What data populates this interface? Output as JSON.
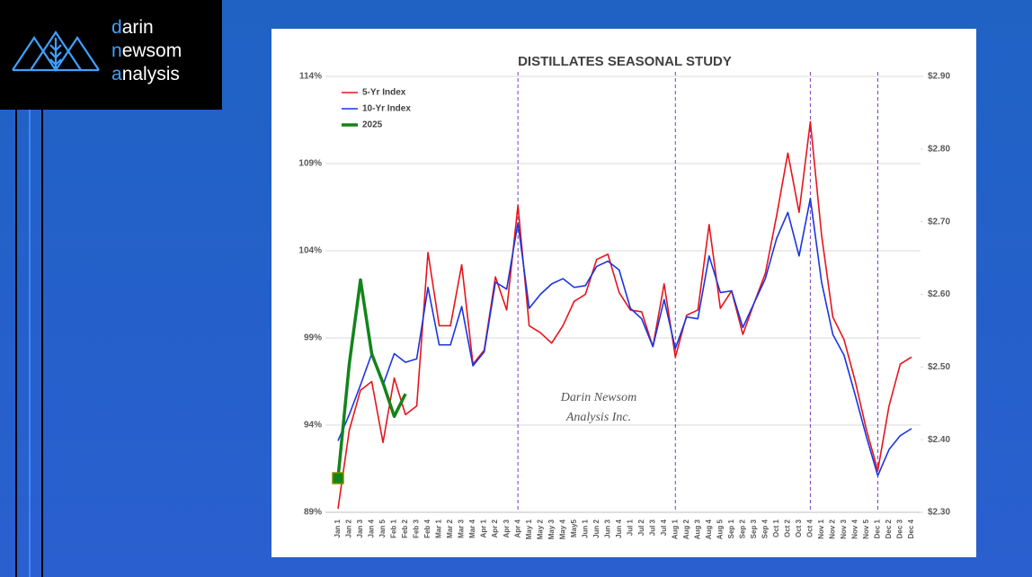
{
  "logo": {
    "lines": [
      {
        "initial": "d",
        "rest": "arin"
      },
      {
        "initial": "n",
        "rest": "ewsom"
      },
      {
        "initial": "a",
        "rest": "nalysis"
      }
    ]
  },
  "watermark": {
    "lines": [
      "Darin Newsom",
      "Analysis Inc."
    ]
  },
  "chart_data": {
    "type": "line",
    "title": "DISTILLATES SEASONAL STUDY",
    "categories": [
      "Jan 1",
      "Jan 2",
      "Jan 3",
      "Jan 4",
      "Jan 5",
      "Feb 1",
      "Feb 2",
      "Feb 3",
      "Feb 4",
      "Mar 1",
      "Mar 2",
      "Mar 3",
      "Mar 4",
      "Apr 1",
      "Apr 2",
      "Apr 3",
      "Apr 4",
      "May 1",
      "May 2",
      "May 3",
      "May 4",
      "May5",
      "Jun 1",
      "Jun 2",
      "Jun 3",
      "Jun 4",
      "Jul 1",
      "Jul 2",
      "Jul 3",
      "Jul 4",
      "Aug 1",
      "Aug 2",
      "Aug 3",
      "Aug 4",
      "Aug 5",
      "Sep 1",
      "Sep 2",
      "Sep 3",
      "Sep 4",
      "Oct 1",
      "Oct 2",
      "Oct 3",
      "Oct 4",
      "Nov 1",
      "Nov 2",
      "Nov 3",
      "Nov 4",
      "Nov 5",
      "Dec 1",
      "Dec 2",
      "Dec 3",
      "Dec 4"
    ],
    "series": [
      {
        "name": "5-Yr Index",
        "color": "#e8141b",
        "width": 1.6,
        "values": [
          89.2,
          93.7,
          96.0,
          96.5,
          93.0,
          96.7,
          94.6,
          95.1,
          103.9,
          99.7,
          99.7,
          103.2,
          97.5,
          98.3,
          102.5,
          100.6,
          106.6,
          99.7,
          99.3,
          98.7,
          99.7,
          101.1,
          101.5,
          103.5,
          103.8,
          101.6,
          100.6,
          100.5,
          98.5,
          102.1,
          97.9,
          100.3,
          100.6,
          105.5,
          100.7,
          101.7,
          99.2,
          101.0,
          102.7,
          106.0,
          109.6,
          106.2,
          111.4,
          104.9,
          100.2,
          98.9,
          96.5,
          93.7,
          91.4,
          95.1,
          97.5,
          97.9
        ]
      },
      {
        "name": "10-Yr Index",
        "color": "#1a35e0",
        "width": 1.6,
        "values": [
          93.1,
          94.6,
          96.3,
          98.1,
          96.3,
          98.1,
          97.6,
          97.8,
          101.9,
          98.6,
          98.6,
          100.8,
          97.4,
          98.2,
          102.2,
          101.8,
          105.6,
          100.7,
          101.5,
          102.1,
          102.4,
          101.9,
          102.0,
          103.1,
          103.4,
          102.9,
          100.7,
          100.1,
          98.5,
          101.2,
          98.4,
          100.2,
          100.1,
          103.7,
          101.6,
          101.7,
          99.6,
          101.0,
          102.4,
          104.7,
          106.2,
          103.7,
          107.0,
          102.2,
          99.2,
          98.0,
          95.7,
          93.3,
          91.1,
          92.6,
          93.4,
          93.8
        ]
      },
      {
        "name": "2025",
        "color": "#12841a",
        "width": 3.5,
        "axis": "y2",
        "marker": "square",
        "marker_color": "#8a8a00",
        "values": [
          2.347,
          2.504,
          2.62,
          2.518,
          2.478,
          2.432,
          2.463,
          null,
          null,
          null,
          null,
          null,
          null,
          null,
          null,
          null,
          null,
          null,
          null,
          null,
          null,
          null,
          null,
          null,
          null,
          null,
          null,
          null,
          null,
          null,
          null,
          null,
          null,
          null,
          null,
          null,
          null,
          null,
          null,
          null,
          null,
          null,
          null,
          null,
          null,
          null,
          null,
          null,
          null,
          null,
          null,
          null
        ]
      }
    ],
    "ylim": [
      89,
      114
    ],
    "yticks": [
      {
        "value": 89,
        "label": "89%"
      },
      {
        "value": 94,
        "label": "94%"
      },
      {
        "value": 99,
        "label": "99%"
      },
      {
        "value": 104,
        "label": "104%"
      },
      {
        "value": 109,
        "label": "109%"
      },
      {
        "value": 114,
        "label": "114%"
      }
    ],
    "y2lim": [
      2.3,
      2.9
    ],
    "y2ticks": [
      {
        "value": 2.3,
        "label": "$2.30"
      },
      {
        "value": 2.4,
        "label": "$2.40"
      },
      {
        "value": 2.5,
        "label": "$2.50"
      },
      {
        "value": 2.6,
        "label": "$2.60"
      },
      {
        "value": 2.7,
        "label": "$2.70"
      },
      {
        "value": 2.8,
        "label": "$2.80"
      },
      {
        "value": 2.9,
        "label": "$2.90"
      }
    ],
    "grid": true,
    "legend": "upper left",
    "vertical_markers": [
      "Apr 4",
      "Aug 1",
      "Oct 4",
      "Dec 1"
    ]
  }
}
